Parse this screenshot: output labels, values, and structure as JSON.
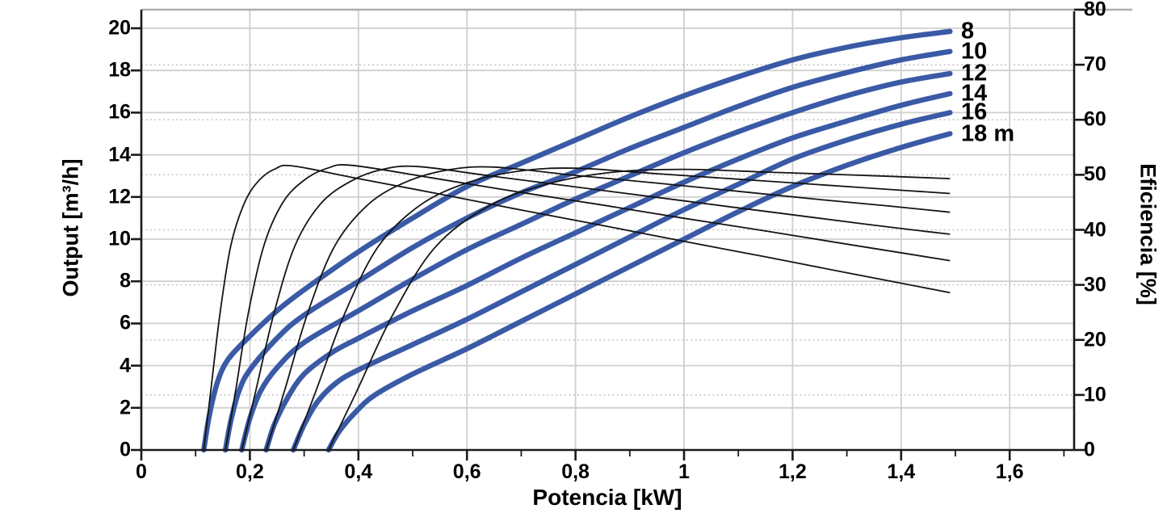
{
  "page": {
    "background": "#ffffff"
  },
  "chart_data": {
    "type": "line",
    "title": "",
    "xlabel": "Potencia [kW]",
    "ylabel_left": "Output [m³/h]",
    "ylabel_right": "Eficiencia [%]",
    "units": {
      "x": "kW",
      "y_left": "m³/h",
      "y_right": "%",
      "head": "m"
    },
    "x_axis": {
      "min": 0,
      "max": 1.72,
      "major_tick_step": 0.2,
      "minor_tick_step": 0.1,
      "tick_values": [
        0,
        0.2,
        0.4,
        0.6,
        0.8,
        1,
        1.2,
        1.4,
        1.6
      ],
      "tick_labels": [
        "0",
        "0,2",
        "0,4",
        "0,6",
        "0,8",
        "1",
        "1,2",
        "1,4",
        "1,6"
      ],
      "minor_tick_values": [
        0.1,
        0.3,
        0.5,
        0.7,
        0.9,
        1.1,
        1.3,
        1.5,
        1.7
      ]
    },
    "y_axis_left": {
      "min": 0,
      "max": 20.9,
      "tick_step": 2,
      "tick_values": [
        0,
        2,
        4,
        6,
        8,
        10,
        12,
        14,
        16,
        18,
        20
      ],
      "tick_labels": [
        "0",
        "2",
        "4",
        "6",
        "8",
        "10",
        "12",
        "14",
        "16",
        "18",
        "20"
      ]
    },
    "y_axis_right": {
      "min": 0,
      "max": 80,
      "tick_step": 10,
      "tick_values": [
        0,
        10,
        20,
        30,
        40,
        50,
        60,
        70,
        80
      ],
      "tick_labels": [
        "0",
        "10",
        "20",
        "30",
        "40",
        "50",
        "60",
        "70",
        "80"
      ]
    },
    "grid": {
      "solid_lines_follow": "left-axis-even-values",
      "dotted_lines_follow": "right-axis-tens"
    },
    "legend_position": "curve-end-labels",
    "colors": {
      "output_curve": "#3a5aa6",
      "efficiency_curve": "#141414",
      "grid_solid": "#cfcfcf",
      "grid_dotted": "#c4c4c4",
      "axis": "#1a1a1a",
      "top_border": "#aeaeae",
      "text": "#000000"
    },
    "series_output": [
      {
        "label": "8",
        "head_m": 8,
        "axis": "left",
        "points": [
          [
            0.115,
            0
          ],
          [
            0.125,
            1.6
          ],
          [
            0.14,
            3.2
          ],
          [
            0.16,
            4.3
          ],
          [
            0.2,
            5.4
          ],
          [
            0.25,
            6.6
          ],
          [
            0.3,
            7.6
          ],
          [
            0.4,
            9.4
          ],
          [
            0.5,
            11.0
          ],
          [
            0.6,
            12.5
          ],
          [
            0.7,
            13.6
          ],
          [
            0.8,
            14.7
          ],
          [
            0.9,
            15.8
          ],
          [
            1.0,
            16.8
          ],
          [
            1.1,
            17.7
          ],
          [
            1.2,
            18.5
          ],
          [
            1.3,
            19.1
          ],
          [
            1.4,
            19.55
          ],
          [
            1.49,
            19.85
          ]
        ]
      },
      {
        "label": "10",
        "head_m": 10,
        "axis": "left",
        "points": [
          [
            0.155,
            0
          ],
          [
            0.165,
            1.4
          ],
          [
            0.18,
            2.8
          ],
          [
            0.2,
            3.8
          ],
          [
            0.25,
            5.3
          ],
          [
            0.3,
            6.4
          ],
          [
            0.4,
            8.0
          ],
          [
            0.5,
            9.6
          ],
          [
            0.6,
            11.0
          ],
          [
            0.7,
            12.2
          ],
          [
            0.8,
            13.2
          ],
          [
            0.9,
            14.3
          ],
          [
            1.0,
            15.3
          ],
          [
            1.1,
            16.3
          ],
          [
            1.2,
            17.2
          ],
          [
            1.3,
            17.9
          ],
          [
            1.4,
            18.5
          ],
          [
            1.49,
            18.9
          ]
        ]
      },
      {
        "label": "12",
        "head_m": 12,
        "axis": "left",
        "points": [
          [
            0.185,
            0
          ],
          [
            0.2,
            1.5
          ],
          [
            0.22,
            2.8
          ],
          [
            0.25,
            3.9
          ],
          [
            0.3,
            5.1
          ],
          [
            0.4,
            6.6
          ],
          [
            0.5,
            8.1
          ],
          [
            0.6,
            9.5
          ],
          [
            0.7,
            10.7
          ],
          [
            0.8,
            11.9
          ],
          [
            0.9,
            13.0
          ],
          [
            1.0,
            14.1
          ],
          [
            1.1,
            15.1
          ],
          [
            1.2,
            16.0
          ],
          [
            1.3,
            16.8
          ],
          [
            1.4,
            17.45
          ],
          [
            1.49,
            17.85
          ]
        ]
      },
      {
        "label": "14",
        "head_m": 14,
        "axis": "left",
        "points": [
          [
            0.23,
            0
          ],
          [
            0.245,
            1.2
          ],
          [
            0.27,
            2.5
          ],
          [
            0.3,
            3.6
          ],
          [
            0.35,
            4.6
          ],
          [
            0.4,
            5.3
          ],
          [
            0.5,
            6.6
          ],
          [
            0.6,
            7.8
          ],
          [
            0.7,
            9.1
          ],
          [
            0.8,
            10.3
          ],
          [
            0.9,
            11.5
          ],
          [
            1.0,
            12.7
          ],
          [
            1.1,
            13.8
          ],
          [
            1.2,
            14.8
          ],
          [
            1.3,
            15.6
          ],
          [
            1.4,
            16.35
          ],
          [
            1.49,
            16.9
          ]
        ]
      },
      {
        "label": "16",
        "head_m": 16,
        "axis": "left",
        "points": [
          [
            0.28,
            0
          ],
          [
            0.3,
            1.2
          ],
          [
            0.325,
            2.3
          ],
          [
            0.36,
            3.2
          ],
          [
            0.4,
            3.8
          ],
          [
            0.5,
            5.0
          ],
          [
            0.6,
            6.2
          ],
          [
            0.7,
            7.5
          ],
          [
            0.8,
            8.8
          ],
          [
            0.9,
            10.1
          ],
          [
            1.0,
            11.4
          ],
          [
            1.1,
            12.6
          ],
          [
            1.2,
            13.8
          ],
          [
            1.3,
            14.7
          ],
          [
            1.4,
            15.45
          ],
          [
            1.49,
            16.0
          ]
        ]
      },
      {
        "label": "18 m",
        "head_m": 18,
        "axis": "left",
        "points": [
          [
            0.345,
            0
          ],
          [
            0.365,
            0.9
          ],
          [
            0.395,
            1.8
          ],
          [
            0.43,
            2.6
          ],
          [
            0.5,
            3.6
          ],
          [
            0.6,
            4.8
          ],
          [
            0.7,
            6.1
          ],
          [
            0.8,
            7.4
          ],
          [
            0.9,
            8.7
          ],
          [
            1.0,
            10.0
          ],
          [
            1.1,
            11.3
          ],
          [
            1.2,
            12.5
          ],
          [
            1.3,
            13.5
          ],
          [
            1.4,
            14.35
          ],
          [
            1.49,
            15.0
          ]
        ]
      }
    ],
    "series_efficiency": [
      {
        "head_m": 8,
        "axis": "right",
        "peak": [
          0.28,
          51.6
        ],
        "points": [
          [
            0.115,
            0
          ],
          [
            0.128,
            10.8
          ],
          [
            0.145,
            24.8
          ],
          [
            0.165,
            37.2
          ],
          [
            0.19,
            44.9
          ],
          [
            0.217,
            49.0
          ],
          [
            0.247,
            51.1
          ],
          [
            0.28,
            51.6
          ],
          [
            0.4,
            49.3
          ],
          [
            0.55,
            46.5
          ],
          [
            0.7,
            43.6
          ],
          [
            0.85,
            40.8
          ],
          [
            1.0,
            37.9
          ],
          [
            1.15,
            35.1
          ],
          [
            1.3,
            32.2
          ],
          [
            1.49,
            28.6
          ]
        ]
      },
      {
        "head_m": 10,
        "axis": "right",
        "peak": [
          0.39,
          51.7
        ],
        "points": [
          [
            0.155,
            0
          ],
          [
            0.174,
            10.9
          ],
          [
            0.197,
            24.8
          ],
          [
            0.226,
            37.2
          ],
          [
            0.261,
            45.0
          ],
          [
            0.301,
            49.1
          ],
          [
            0.343,
            51.2
          ],
          [
            0.39,
            51.7
          ],
          [
            0.55,
            49.2
          ],
          [
            0.7,
            46.8
          ],
          [
            0.85,
            44.5
          ],
          [
            1.0,
            42.1
          ],
          [
            1.15,
            39.8
          ],
          [
            1.3,
            37.4
          ],
          [
            1.49,
            34.4
          ]
        ]
      },
      {
        "head_m": 12,
        "axis": "right",
        "peak": [
          0.51,
          51.5
        ],
        "points": [
          [
            0.185,
            0
          ],
          [
            0.211,
            10.8
          ],
          [
            0.244,
            24.7
          ],
          [
            0.283,
            37.1
          ],
          [
            0.331,
            44.8
          ],
          [
            0.387,
            48.9
          ],
          [
            0.445,
            51.0
          ],
          [
            0.51,
            51.5
          ],
          [
            0.65,
            49.7
          ],
          [
            0.8,
            47.8
          ],
          [
            0.95,
            45.9
          ],
          [
            1.1,
            44.0
          ],
          [
            1.25,
            42.1
          ],
          [
            1.37,
            40.6
          ],
          [
            1.49,
            39.2
          ]
        ]
      },
      {
        "head_m": 14,
        "axis": "right",
        "peak": [
          0.65,
          51.4
        ],
        "points": [
          [
            0.23,
            0
          ],
          [
            0.264,
            10.8
          ],
          [
            0.306,
            24.7
          ],
          [
            0.356,
            37.0
          ],
          [
            0.419,
            44.7
          ],
          [
            0.49,
            48.8
          ],
          [
            0.566,
            50.9
          ],
          [
            0.65,
            51.4
          ],
          [
            0.8,
            49.9
          ],
          [
            0.95,
            48.5
          ],
          [
            1.1,
            47.0
          ],
          [
            1.25,
            45.5
          ],
          [
            1.37,
            44.4
          ],
          [
            1.49,
            43.2
          ]
        ]
      },
      {
        "head_m": 16,
        "axis": "right",
        "peak": [
          0.8,
          51.2
        ],
        "points": [
          [
            0.28,
            0
          ],
          [
            0.322,
            10.8
          ],
          [
            0.374,
            24.6
          ],
          [
            0.436,
            36.9
          ],
          [
            0.514,
            44.5
          ],
          [
            0.602,
            48.6
          ],
          [
            0.698,
            50.7
          ],
          [
            0.8,
            51.2
          ],
          [
            0.95,
            50.2
          ],
          [
            1.1,
            49.2
          ],
          [
            1.25,
            48.2
          ],
          [
            1.37,
            47.4
          ],
          [
            1.49,
            46.6
          ]
        ]
      },
      {
        "head_m": 18,
        "axis": "right",
        "peak": [
          1.0,
          51.0
        ],
        "points": [
          [
            0.345,
            0
          ],
          [
            0.397,
            10.7
          ],
          [
            0.463,
            24.5
          ],
          [
            0.541,
            36.8
          ],
          [
            0.64,
            44.3
          ],
          [
            0.751,
            48.4
          ],
          [
            0.871,
            50.5
          ],
          [
            1.0,
            51.0
          ],
          [
            1.15,
            50.5
          ],
          [
            1.3,
            50.0
          ],
          [
            1.4,
            49.65
          ],
          [
            1.49,
            49.3
          ]
        ]
      }
    ]
  }
}
